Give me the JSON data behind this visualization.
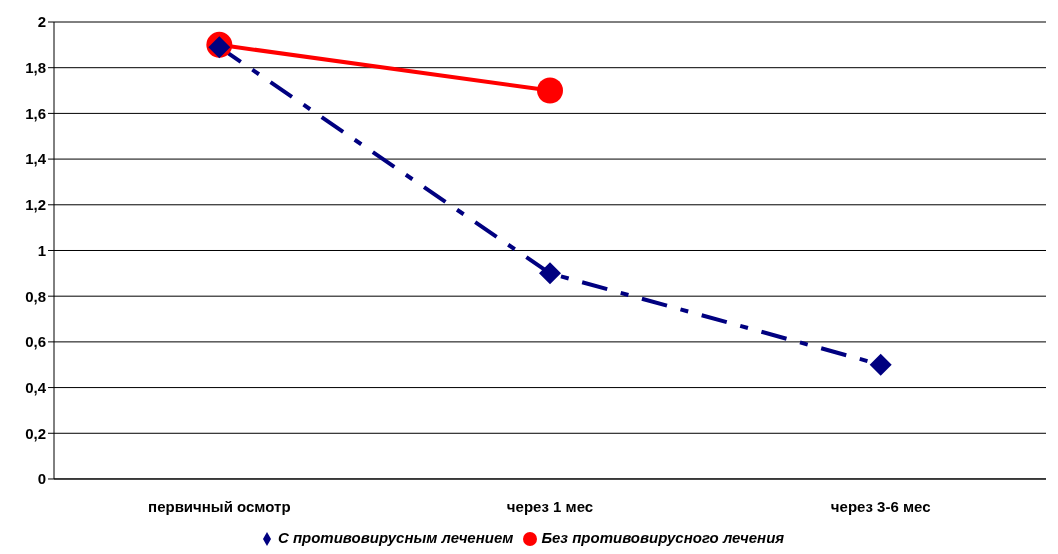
{
  "chart_data": {
    "type": "line",
    "categories": [
      "первичный осмотр",
      "через 1 мес",
      "через 3-6 мес"
    ],
    "series": [
      {
        "name": "С противовирусным лечением",
        "color": "#000080",
        "values": [
          1.89,
          0.9,
          0.5
        ],
        "marker": "diamond",
        "line_style": "dashdot"
      },
      {
        "name": "Без противовирусного лечения",
        "color": "#ff0000",
        "values": [
          1.9,
          1.7,
          null
        ],
        "marker": "circle",
        "line_style": "solid"
      }
    ],
    "ylim": [
      0,
      2
    ],
    "yticks": [
      {
        "value": 0,
        "label": "0"
      },
      {
        "value": 0.2,
        "label": "0,2"
      },
      {
        "value": 0.4,
        "label": "0,4"
      },
      {
        "value": 0.6,
        "label": "0,6"
      },
      {
        "value": 0.8,
        "label": "0,8"
      },
      {
        "value": 1,
        "label": "1"
      },
      {
        "value": 1.2,
        "label": "1,2"
      },
      {
        "value": 1.4,
        "label": "1,4"
      },
      {
        "value": 1.6,
        "label": "1,6"
      },
      {
        "value": 1.8,
        "label": "1,8"
      },
      {
        "value": 2,
        "label": "2"
      }
    ],
    "grid": "y",
    "legend": "bottom"
  }
}
